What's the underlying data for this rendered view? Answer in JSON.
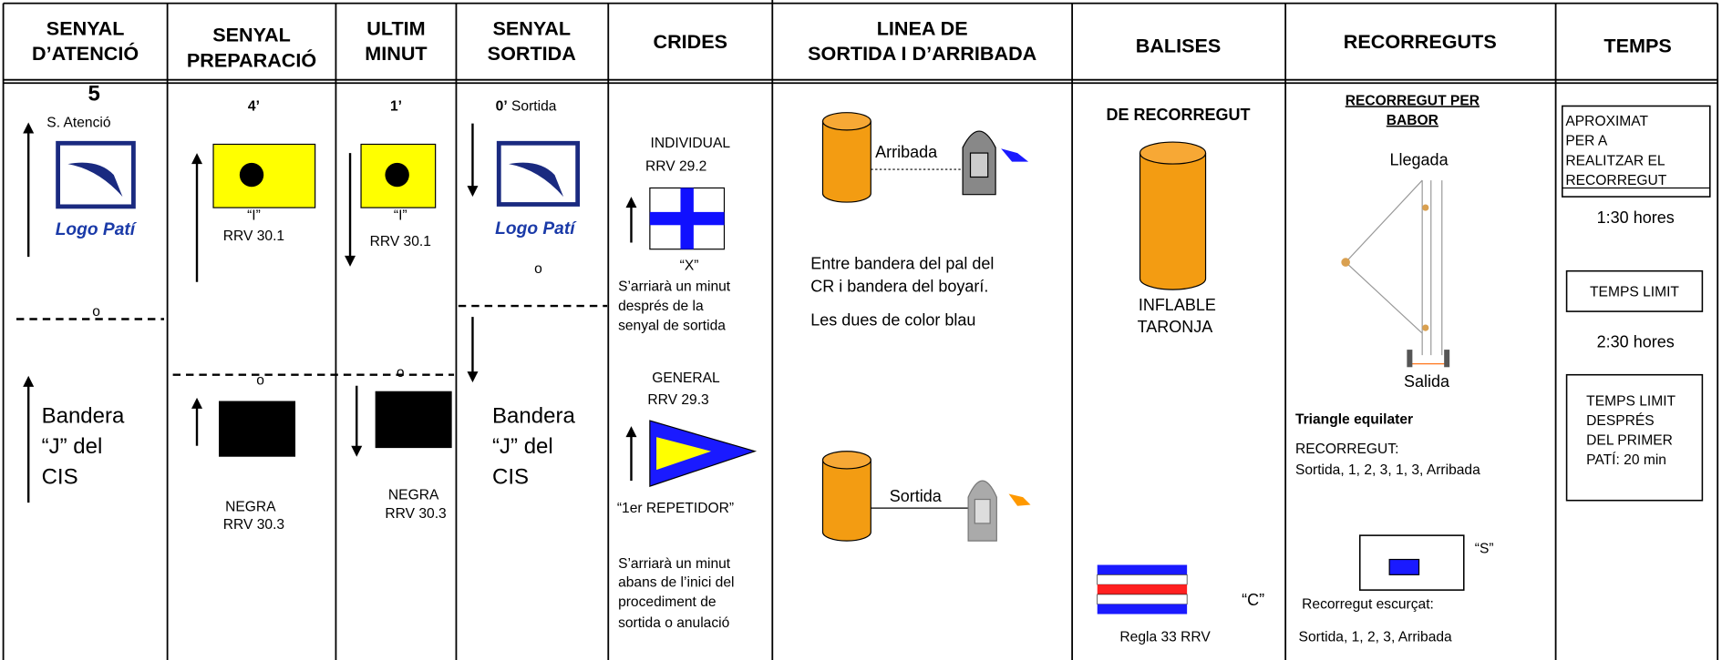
{
  "columns": [
    {
      "header": [
        "SENYAL",
        "D’ATENCIÓ"
      ],
      "texts": [
        "5",
        "S. Atenció",
        "Logo Patí",
        "o",
        "Bandera",
        "“J” del",
        "CIS"
      ]
    },
    {
      "header": [
        "SENYAL",
        "PREPARACIÓ"
      ],
      "texts": [
        "4’",
        "“I”",
        "RRV  30.1",
        "o",
        "NEGRA",
        "RRV  30.3"
      ]
    },
    {
      "header": [
        "ULTIM",
        "MINUT"
      ],
      "texts": [
        "1’",
        "“I”",
        "RRV  30.1",
        "o",
        "NEGRA",
        "RRV  30.3"
      ]
    },
    {
      "header": [
        "SENYAL",
        "SORTIDA"
      ],
      "texts": [
        "0’",
        " Sortida",
        "Logo Patí",
        "o",
        "Bandera",
        "“J” del",
        "CIS"
      ]
    },
    {
      "header": [
        "CRIDES"
      ],
      "texts": [
        "INDIVIDUAL",
        "RRV  29.2",
        "“X”",
        "S’arriarà un minut",
        "després de la",
        "senyal de sortida",
        "GENERAL",
        "RRV  29.3",
        "“1er REPETIDOR”",
        "S’arriarà un minut",
        "abans de l’inici del",
        "procediment de",
        "sortida o anulació"
      ]
    },
    {
      "header": [
        "LINEA DE",
        "SORTIDA I D’ARRIBADA"
      ],
      "texts": [
        "Arribada",
        "Entre bandera del pal del",
        "CR i bandera del boyarí.",
        "Les dues de color blau",
        "Sortida"
      ]
    },
    {
      "header": [
        "BALISES"
      ],
      "texts": [
        "DE RECORREGUT",
        "INFLABLE",
        "TARONJA",
        "“C”",
        "Regla 33 RRV"
      ]
    },
    {
      "header": [
        "RECORREGUTS"
      ],
      "texts": [
        "RECORREGUT PER",
        "BABOR",
        "Llegada",
        "Salida",
        "Triangle equilater",
        "RECORREGUT:",
        "Sortida, 1, 2, 3, 1, 3, Arribada",
        "“S”",
        "Recorregut escurçat:",
        "Sortida, 1, 2, 3, Arribada"
      ]
    },
    {
      "header": [
        "TEMPS"
      ],
      "texts": [
        "APROXIMAT",
        "PER A",
        "REALITZAR EL",
        "RECORREGUT",
        "1:30  hores",
        "TEMPS LIMIT",
        "2:30 hores",
        "TEMPS LIMIT",
        "DESPRÉS",
        "DEL PRIMER",
        "PATÍ: 20 min"
      ]
    }
  ]
}
